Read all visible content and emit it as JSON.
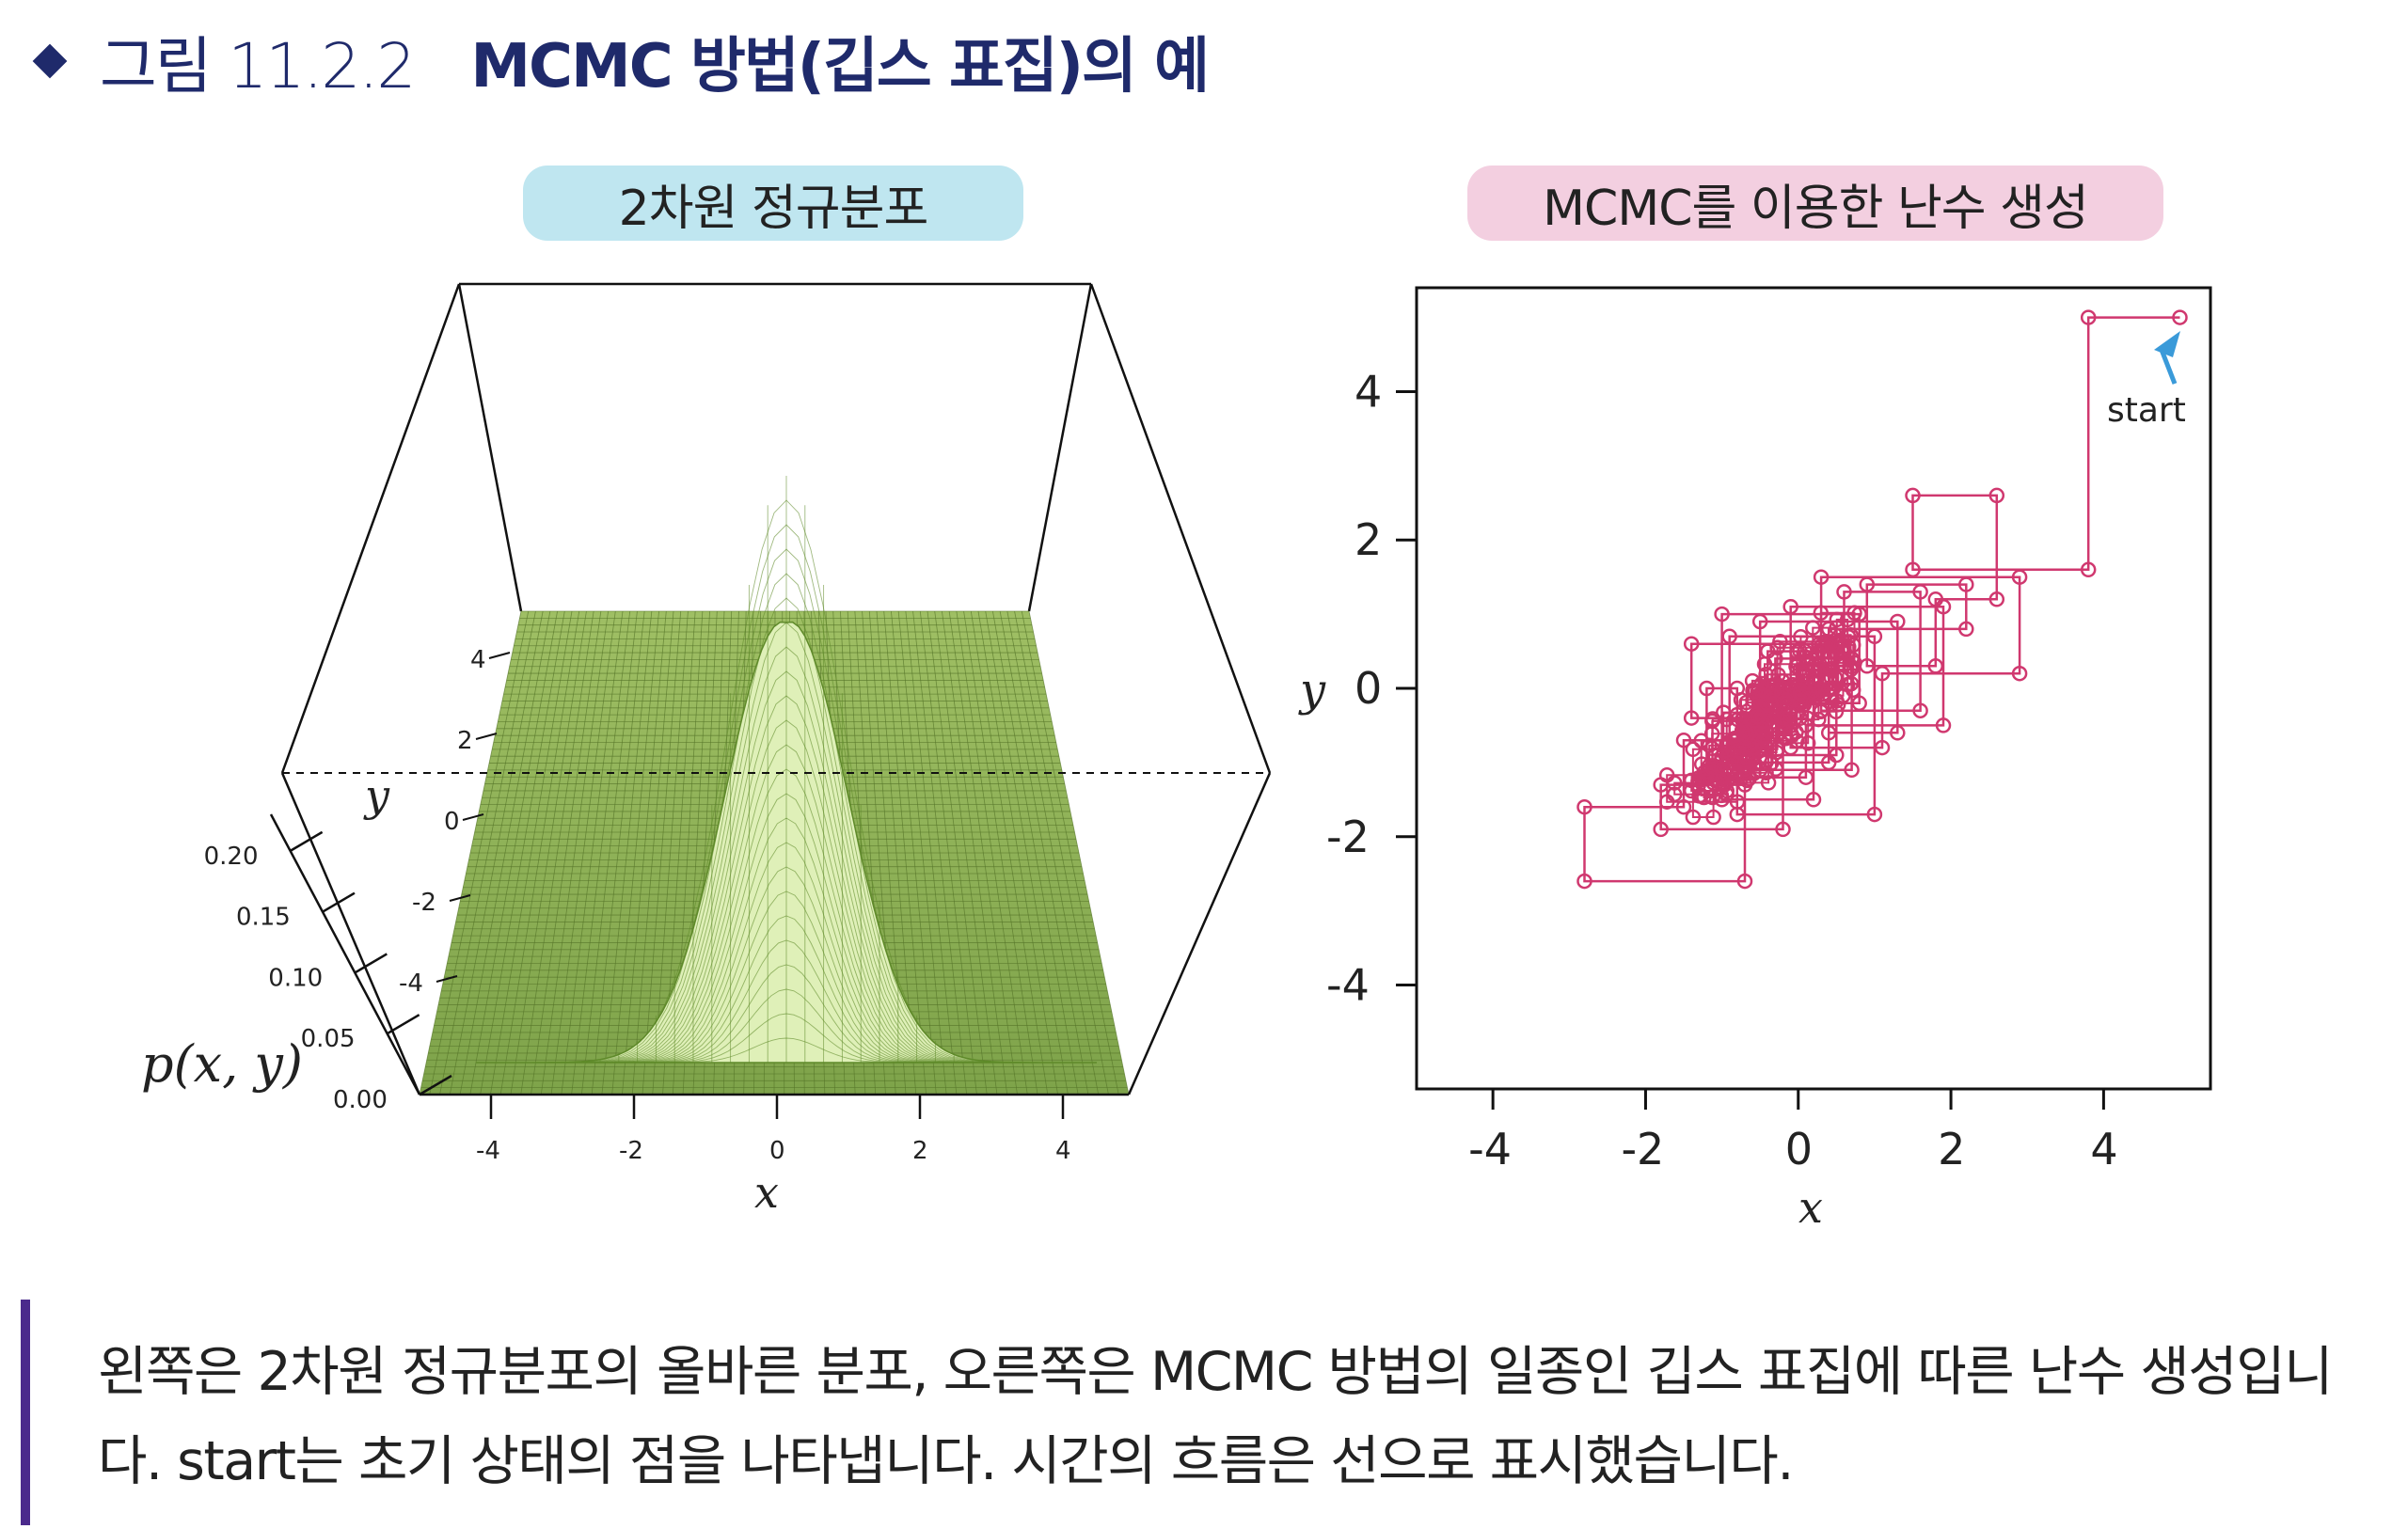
{
  "header": {
    "figure_number": "그림 11.2.2",
    "figure_title": "MCMC 방법(깁스 표집)의 예"
  },
  "left_panel": {
    "title": "2차원 정규분포",
    "z_label": "p(x, y)",
    "x_label": "x",
    "y_label": "y",
    "z_ticks": [
      "0.00",
      "0.05",
      "0.10",
      "0.15",
      "0.20"
    ],
    "x_ticks": [
      "-4",
      "-2",
      "0",
      "2",
      "4"
    ],
    "y_ticks": [
      "-4",
      "-2",
      "0",
      "2",
      "4"
    ],
    "surface_color": "#6b8e23"
  },
  "right_panel": {
    "title": "MCMC를 이용한 난수 생성",
    "x_label": "x",
    "y_label": "y",
    "x_ticks": [
      "-4",
      "-2",
      "0",
      "2",
      "4"
    ],
    "y_ticks": [
      "-4",
      "-2",
      "0",
      "2",
      "4"
    ],
    "start_label": "start",
    "line_color": "#d0386f",
    "arrow_color": "#3a9ad9"
  },
  "chart_data": {
    "type": "line",
    "title": "MCMC를 이용한 난수 생성",
    "xlabel": "x",
    "ylabel": "y",
    "xlim": [
      -5,
      5.4
    ],
    "ylim": [
      -5.4,
      5.4
    ],
    "series": [
      {
        "name": "start",
        "x": [
          5.0,
          3.8,
          3.8,
          1.5,
          1.5,
          2.6,
          2.6,
          1.8,
          1.8,
          0.9,
          0.9,
          2.2,
          2.2,
          0.4,
          0.4,
          1.3,
          1.3,
          -0.5,
          -0.5,
          0.7,
          0.7,
          -0.3,
          -0.3,
          0.8,
          0.8,
          -1.0,
          -1.0,
          0.2,
          0.2,
          -0.6,
          -0.6,
          0.5,
          0.5,
          -1.4,
          -1.4,
          -0.2,
          -0.2,
          -1.8,
          -1.8,
          -0.7,
          -0.7,
          -2.8,
          -2.8,
          -1.5,
          -1.5,
          -0.4,
          -0.4,
          0.6,
          0.6,
          1.6,
          1.6,
          0.3,
          0.3,
          2.9,
          2.9,
          1.1,
          1.1,
          -0.1,
          -0.1,
          1.9,
          1.9,
          0.1,
          0.1,
          -1.2,
          -1.2,
          -0.8,
          -0.8,
          1.0,
          1.0,
          -0.9,
          -0.9,
          0.4,
          0.4
        ],
        "y": [
          5.0,
          5.0,
          1.6,
          1.6,
          2.6,
          2.6,
          1.2,
          1.2,
          0.3,
          0.3,
          1.4,
          1.4,
          0.8,
          0.8,
          -0.6,
          -0.6,
          0.9,
          0.9,
          -1.1,
          -1.1,
          0.4,
          0.4,
          -0.2,
          -0.2,
          1.0,
          1.0,
          -1.5,
          -1.5,
          0.1,
          0.1,
          -0.9,
          -0.9,
          0.6,
          0.6,
          -0.4,
          -0.4,
          -1.9,
          -1.9,
          -1.3,
          -1.3,
          -2.6,
          -2.6,
          -1.6,
          -1.6,
          -0.7,
          -0.7,
          0.5,
          0.5,
          1.3,
          1.3,
          -0.3,
          -0.3,
          1.5,
          1.5,
          0.2,
          0.2,
          -0.8,
          -0.8,
          1.1,
          1.1,
          -0.5,
          -0.5,
          -1.2,
          -1.2,
          0.0,
          0.0,
          -1.7,
          -1.7,
          0.7,
          0.7,
          -1.0,
          -1.0,
          0.0
        ]
      }
    ]
  },
  "caption": {
    "line1": "왼쪽은 2차원 정규분포의 올바른 분포, 오른쪽은 MCMC 방법의 일종인 깁스 표집에 따른 난수 생성입니",
    "line2": "다. start는 초기 상태의 점을 나타냅니다. 시간의 흐름은 선으로 표시했습니다."
  }
}
